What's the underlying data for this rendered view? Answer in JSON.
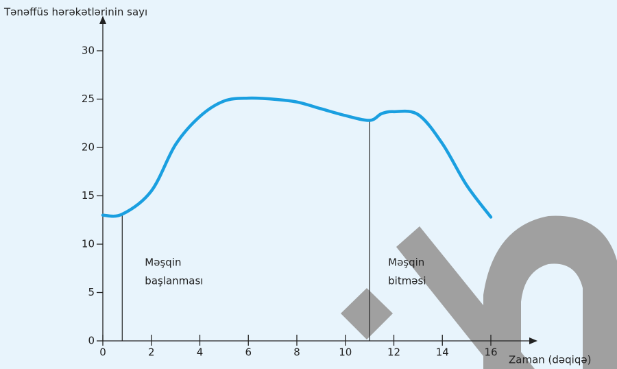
{
  "chart_data": {
    "type": "line",
    "x_label": "Zaman (dəqiqə)",
    "y_label": "Tənəffüs hərəkətlərinin sayı",
    "x": [
      0,
      0.8,
      2,
      3,
      4,
      5,
      6,
      7,
      8,
      9,
      10,
      11,
      11.5,
      12,
      13,
      14,
      15,
      16
    ],
    "series": [
      {
        "color": "#1a9fe0",
        "values": [
          13,
          13.1,
          15.5,
          20.3,
          23.2,
          24.8,
          25.1,
          25,
          24.7,
          24,
          23.3,
          22.8,
          23.5,
          23.7,
          23.4,
          20.4,
          16.1,
          12.8
        ]
      }
    ],
    "xlim": [
      0,
      16
    ],
    "xticks": [
      0,
      2,
      4,
      6,
      8,
      10,
      12,
      14,
      16
    ],
    "ylim": [
      0,
      30
    ],
    "yticks": [
      0,
      5,
      10,
      15,
      20,
      25,
      30
    ],
    "markers": [
      {
        "x": 0.8,
        "y": 13.1,
        "label": [
          "Məşqin",
          "başlanması"
        ]
      },
      {
        "x": 11,
        "y": 22.8,
        "label": [
          "Məşqin",
          "bitməsi"
        ]
      }
    ]
  }
}
